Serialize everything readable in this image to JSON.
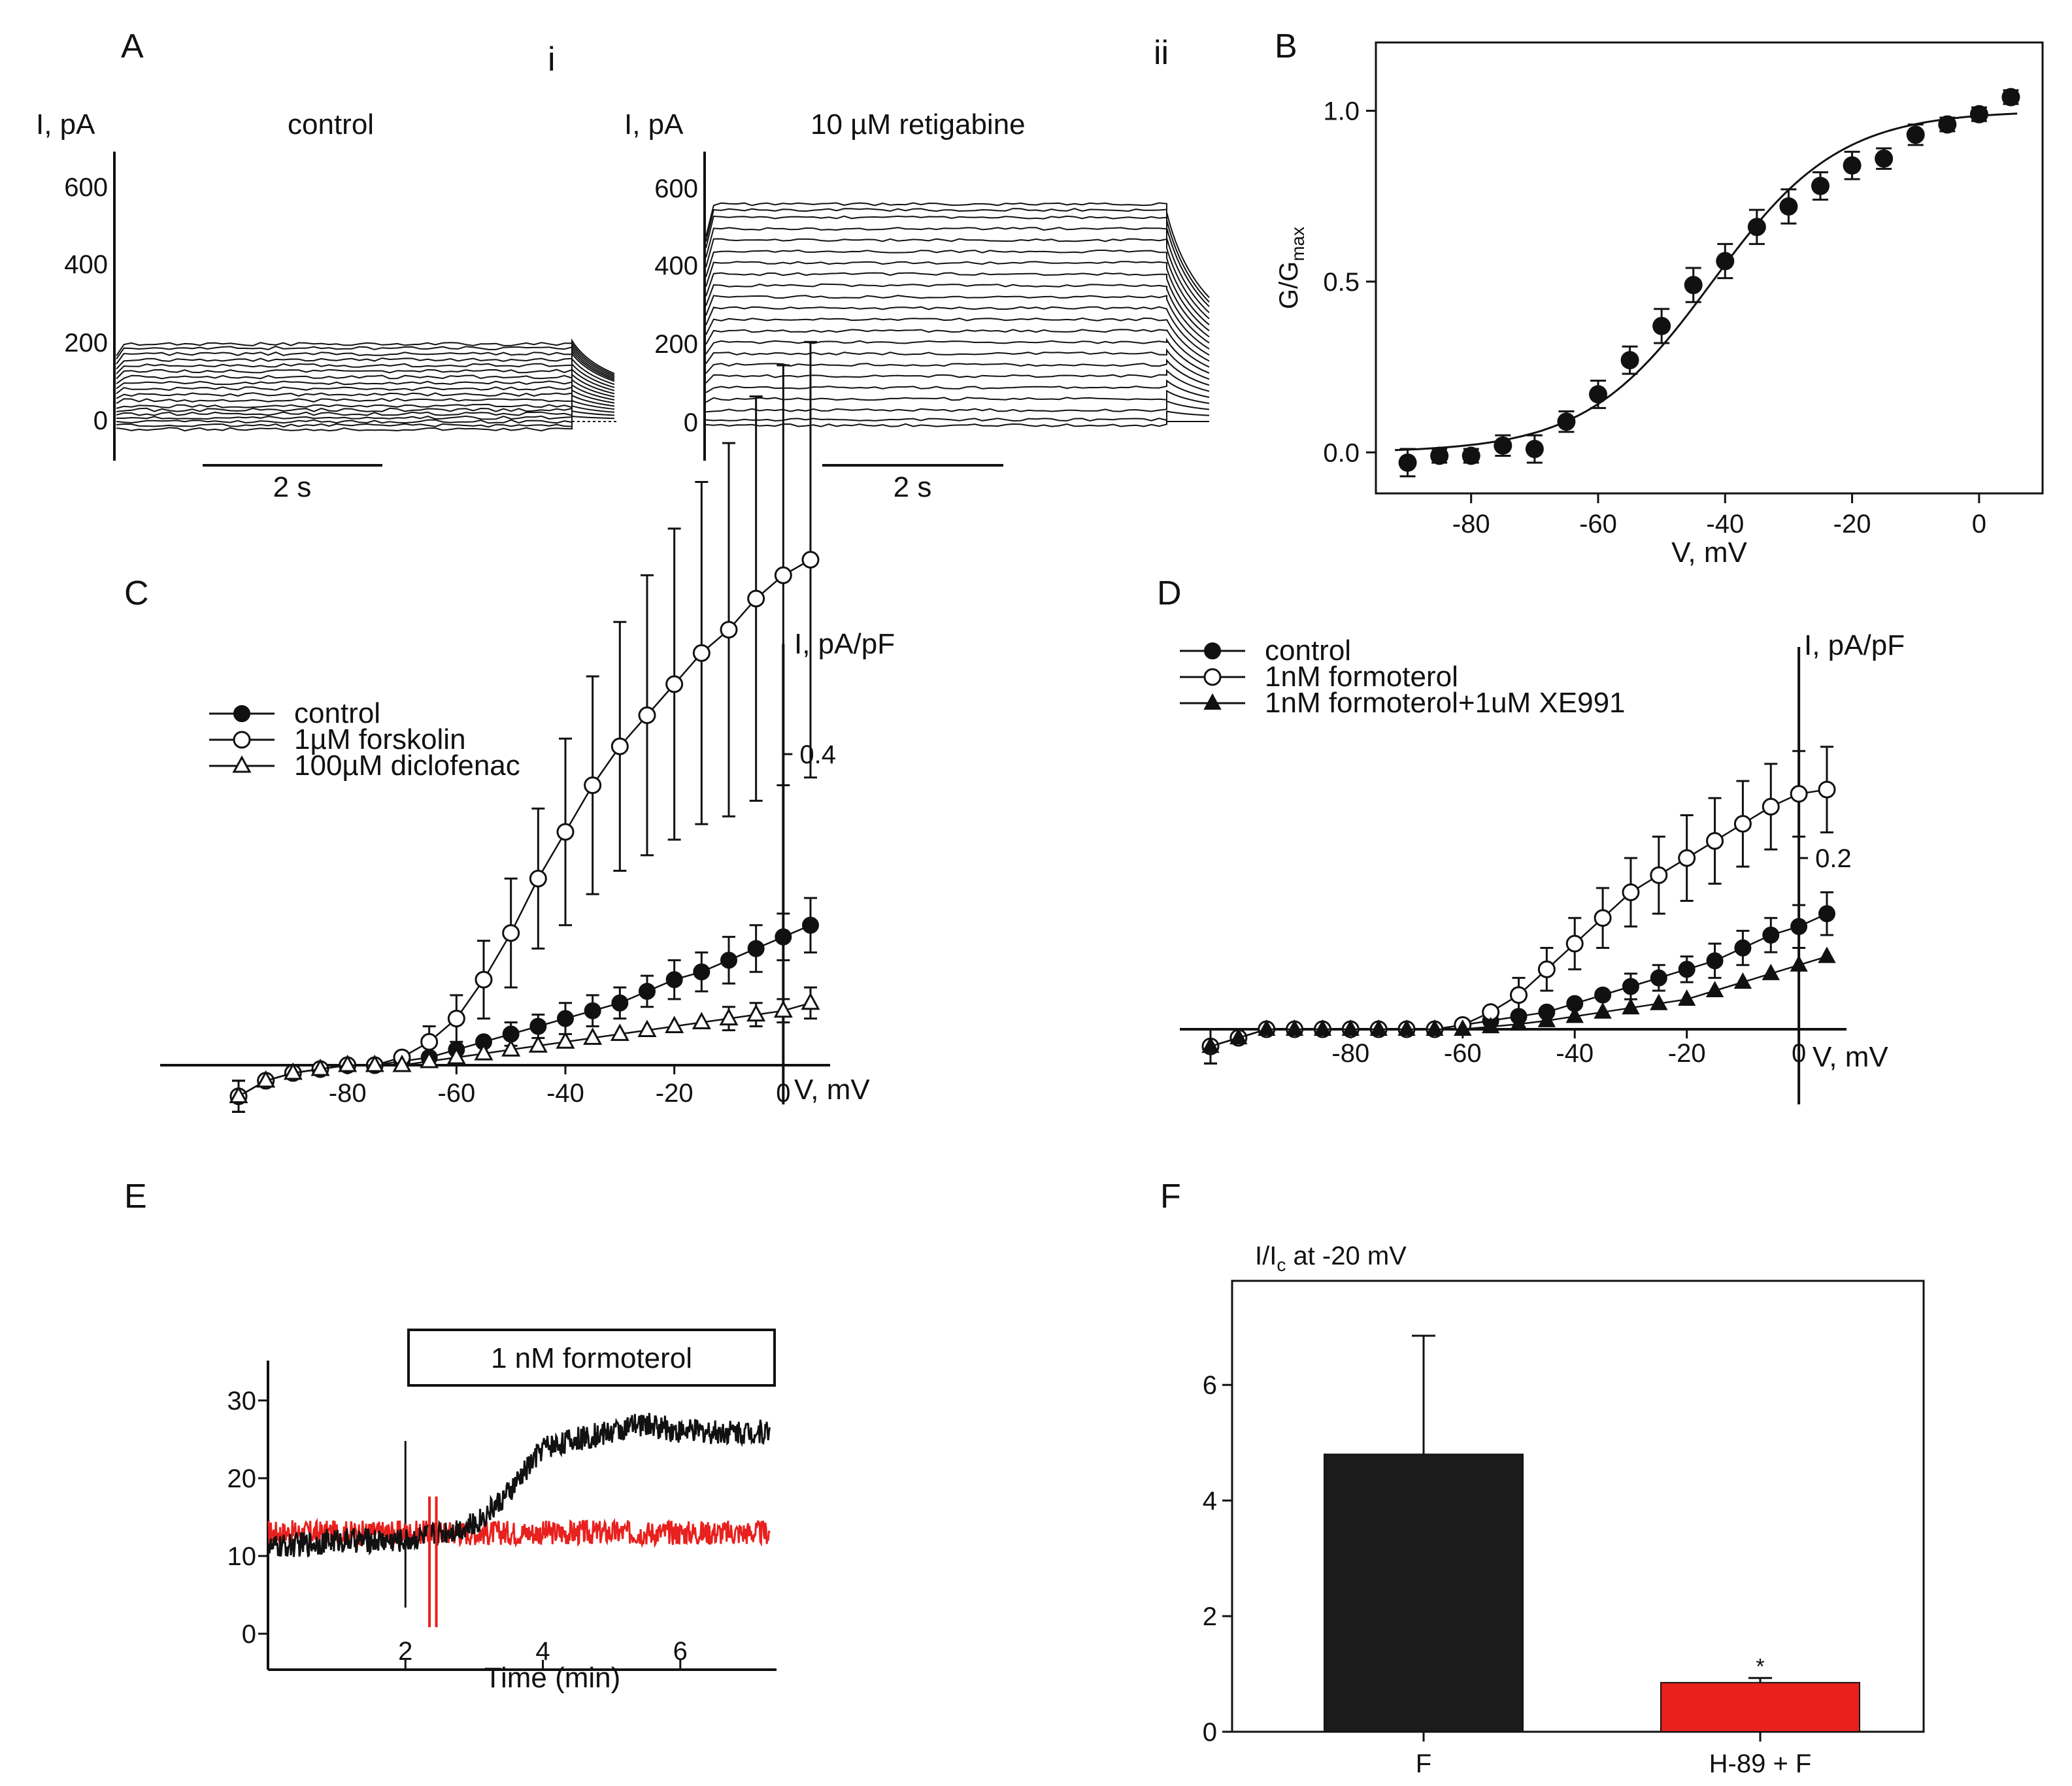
{
  "panel_labels": {
    "A": "A",
    "i": "i",
    "ii": "ii",
    "B": "B",
    "C": "C",
    "D": "D",
    "E": "E",
    "F": "F"
  },
  "colors": {
    "ink": "#111111",
    "accent_red": "#e8211e",
    "bar_black": "#1b1b1b"
  },
  "chart_data": [
    {
      "id": "Ai",
      "type": "line",
      "title": "control",
      "ylabel": "I, pA",
      "yticks": [
        "600",
        "400",
        "200",
        "0"
      ],
      "ylim": [
        -50,
        650
      ],
      "scalebar": "2 s",
      "steady_currents": [
        -20,
        -10,
        0,
        10,
        20,
        30,
        40,
        55,
        70,
        85,
        100,
        115,
        130,
        145,
        160,
        175,
        190,
        200
      ],
      "tail_currents": [
        10,
        20,
        30,
        40,
        50,
        60,
        70,
        80,
        90,
        100,
        110,
        120,
        130,
        135,
        140,
        145,
        150,
        155
      ]
    },
    {
      "id": "Aii",
      "type": "line",
      "title": "10 µM retigabine",
      "ylabel": "I, pA",
      "yticks": [
        "600",
        "400",
        "200",
        "0"
      ],
      "ylim": [
        -50,
        650
      ],
      "scalebar": "2 s",
      "steady_currents": [
        -10,
        5,
        30,
        60,
        90,
        120,
        150,
        180,
        210,
        240,
        270,
        300,
        330,
        360,
        390,
        420,
        450,
        480,
        510,
        540,
        560,
        575
      ],
      "tail_currents": [
        0,
        20,
        40,
        60,
        80,
        100,
        120,
        140,
        160,
        180,
        200,
        220,
        240,
        260,
        280,
        300,
        320,
        340,
        360,
        380,
        395,
        410
      ]
    },
    {
      "id": "B",
      "type": "scatter",
      "ylabel": "G/G",
      "ylabel_sub": "max",
      "xlabel": "V, mV",
      "xticks": [
        "-80",
        "-60",
        "-40",
        "-20",
        "0"
      ],
      "yticks": [
        "1.0",
        "0.5",
        "0.0"
      ],
      "xlim": [
        -95,
        10
      ],
      "ylim": [
        -0.12,
        1.2
      ],
      "x": [
        -90,
        -85,
        -80,
        -75,
        -70,
        -65,
        -60,
        -55,
        -50,
        -45,
        -40,
        -35,
        -30,
        -25,
        -20,
        -15,
        -10,
        -5,
        0,
        5
      ],
      "y": [
        -0.03,
        -0.01,
        -0.01,
        0.02,
        0.01,
        0.09,
        0.17,
        0.27,
        0.37,
        0.49,
        0.56,
        0.66,
        0.72,
        0.78,
        0.84,
        0.86,
        0.93,
        0.96,
        0.99,
        1.04
      ],
      "err": [
        0.04,
        0.02,
        0.02,
        0.03,
        0.04,
        0.03,
        0.04,
        0.04,
        0.05,
        0.05,
        0.05,
        0.05,
        0.05,
        0.04,
        0.04,
        0.03,
        0.03,
        0.02,
        0.02,
        0.02
      ],
      "fit": {
        "v_half": -42,
        "slope": 10
      }
    },
    {
      "id": "C",
      "type": "line",
      "ylabel": "I, pA/pF",
      "xlabel": "V, mV",
      "xticks": [
        "-80",
        "-60",
        "-40",
        "-20",
        "0"
      ],
      "ytick_label": "0.4",
      "ytick_value": 0.4,
      "xlim": [
        -110,
        10
      ],
      "ylim": [
        -0.1,
        1.0
      ],
      "x": [
        -100,
        -95,
        -90,
        -85,
        -80,
        -75,
        -70,
        -65,
        -60,
        -55,
        -50,
        -45,
        -40,
        -35,
        -30,
        -25,
        -20,
        -15,
        -10,
        -5,
        0,
        5
      ],
      "series": [
        {
          "name": "control",
          "marker": "filled-circle",
          "values": [
            -0.04,
            -0.02,
            -0.01,
            -0.005,
            0.0,
            0.0,
            0.005,
            0.01,
            0.02,
            0.03,
            0.04,
            0.05,
            0.06,
            0.07,
            0.08,
            0.095,
            0.11,
            0.12,
            0.135,
            0.15,
            0.165,
            0.18
          ],
          "err": [
            0.02,
            0.01,
            0.01,
            0.01,
            0.01,
            0.01,
            0.01,
            0.01,
            0.01,
            0.01,
            0.015,
            0.015,
            0.02,
            0.02,
            0.02,
            0.02,
            0.025,
            0.025,
            0.03,
            0.03,
            0.03,
            0.035
          ]
        },
        {
          "name": "1µM forskolin",
          "marker": "open-circle",
          "values": [
            -0.04,
            -0.02,
            -0.01,
            -0.005,
            0.0,
            0.0,
            0.01,
            0.03,
            0.06,
            0.11,
            0.17,
            0.24,
            0.3,
            0.36,
            0.41,
            0.45,
            0.49,
            0.53,
            0.56,
            0.6,
            0.63,
            0.65
          ],
          "err": [
            0.02,
            0.01,
            0.01,
            0.01,
            0.01,
            0.01,
            0.01,
            0.02,
            0.03,
            0.05,
            0.07,
            0.09,
            0.12,
            0.14,
            0.16,
            0.18,
            0.2,
            0.22,
            0.24,
            0.26,
            0.27,
            0.28
          ]
        },
        {
          "name": "100µM diclofenac",
          "marker": "open-triangle",
          "values": [
            -0.04,
            -0.02,
            -0.01,
            -0.005,
            0.0,
            0.0,
            0.0,
            0.005,
            0.01,
            0.015,
            0.02,
            0.025,
            0.03,
            0.035,
            0.04,
            0.045,
            0.05,
            0.055,
            0.06,
            0.065,
            0.07,
            0.08
          ],
          "err": [
            0.02,
            0.01,
            0.01,
            0.01,
            0.01,
            0.01,
            0.01,
            0.01,
            0.01,
            0.01,
            0.01,
            0.01,
            0.01,
            0.01,
            0.01,
            0.01,
            0.01,
            0.01,
            0.015,
            0.015,
            0.015,
            0.02
          ]
        }
      ]
    },
    {
      "id": "D",
      "type": "line",
      "ylabel": "I, pA/pF",
      "xlabel": "V, mV",
      "xticks": [
        "-80",
        "-60",
        "-40",
        "-20",
        "0"
      ],
      "ytick_label": "0.2",
      "ytick_value": 0.2,
      "xlim": [
        -110,
        15
      ],
      "ylim": [
        -0.05,
        0.5
      ],
      "x": [
        -105,
        -100,
        -95,
        -90,
        -85,
        -80,
        -75,
        -70,
        -65,
        -60,
        -55,
        -50,
        -45,
        -40,
        -35,
        -30,
        -25,
        -20,
        -15,
        -10,
        -5,
        0,
        5
      ],
      "series": [
        {
          "name": "control",
          "marker": "filled-circle",
          "values": [
            -0.02,
            -0.01,
            0.0,
            0.0,
            0.0,
            0.0,
            0.0,
            0.0,
            0.0,
            0.005,
            0.01,
            0.015,
            0.02,
            0.03,
            0.04,
            0.05,
            0.06,
            0.07,
            0.08,
            0.095,
            0.11,
            0.12,
            0.135
          ],
          "err": [
            0.02,
            0.01,
            0.01,
            0.005,
            0.005,
            0.005,
            0.005,
            0.005,
            0.005,
            0.01,
            0.01,
            0.01,
            0.01,
            0.01,
            0.01,
            0.015,
            0.015,
            0.015,
            0.02,
            0.02,
            0.02,
            0.025,
            0.025
          ]
        },
        {
          "name": "1nM formoterol",
          "marker": "open-circle",
          "values": [
            -0.02,
            -0.01,
            0.0,
            0.0,
            0.0,
            0.0,
            0.0,
            0.0,
            0.0,
            0.005,
            0.02,
            0.04,
            0.07,
            0.1,
            0.13,
            0.16,
            0.18,
            0.2,
            0.22,
            0.24,
            0.26,
            0.275,
            0.28
          ],
          "err": [
            0.02,
            0.01,
            0.01,
            0.005,
            0.005,
            0.005,
            0.005,
            0.005,
            0.005,
            0.01,
            0.01,
            0.02,
            0.025,
            0.03,
            0.035,
            0.04,
            0.045,
            0.05,
            0.05,
            0.05,
            0.05,
            0.05,
            0.05
          ]
        },
        {
          "name": "1nM formoterol+1uM XE991",
          "marker": "filled-triangle",
          "values": [
            -0.02,
            -0.01,
            0.0,
            0.0,
            0.0,
            0.0,
            0.0,
            0.0,
            0.0,
            0.0,
            0.003,
            0.006,
            0.01,
            0.015,
            0.02,
            0.025,
            0.03,
            0.035,
            0.045,
            0.055,
            0.065,
            0.075,
            0.085
          ],
          "err": [
            0.02,
            0.01,
            0.005,
            0.005,
            0.005,
            0.005,
            0.005,
            0.005,
            0.005,
            0.005,
            0.005,
            0.005,
            0.005,
            0.005,
            0.005,
            0.005,
            0.005,
            0.005,
            0.01,
            0.01,
            0.01,
            0.01,
            0.01
          ]
        }
      ]
    },
    {
      "id": "E",
      "type": "line",
      "xlabel": "Time (min)",
      "xticks": [
        "2",
        "4",
        "6"
      ],
      "yticks": [
        "30",
        "20",
        "10",
        "0"
      ],
      "xlim": [
        0,
        7.4
      ],
      "ylim": [
        -5,
        35
      ],
      "annotation": "1 nM formoterol",
      "series": [
        {
          "name": "black",
          "color": "#111111",
          "x": [
            0,
            1,
            2,
            3,
            3.5,
            4,
            4.5,
            5,
            5.5,
            6,
            7,
            7.3
          ],
          "values": [
            11,
            12,
            12,
            14,
            18,
            24,
            25,
            26,
            27,
            26,
            26,
            26
          ]
        },
        {
          "name": "red",
          "color": "#e8211e",
          "x": [
            0,
            1,
            2,
            3,
            4,
            5,
            6,
            7,
            7.3
          ],
          "values": [
            13,
            13,
            13,
            13,
            13,
            13,
            13,
            13,
            13
          ]
        }
      ]
    },
    {
      "id": "F",
      "type": "bar",
      "ylabel": "I/I",
      "ylabel_sub": "c",
      "ylabel_tail": " at -20 mV",
      "categories": [
        "F",
        "H-89 + F"
      ],
      "values": [
        4.8,
        0.85
      ],
      "err": [
        2.05,
        0.08
      ],
      "colors": [
        "#1b1b1b",
        "#e8211e"
      ],
      "yticks": [
        "0",
        "2",
        "4",
        "6"
      ],
      "ylim": [
        0,
        7.8
      ],
      "significance": "*"
    }
  ]
}
